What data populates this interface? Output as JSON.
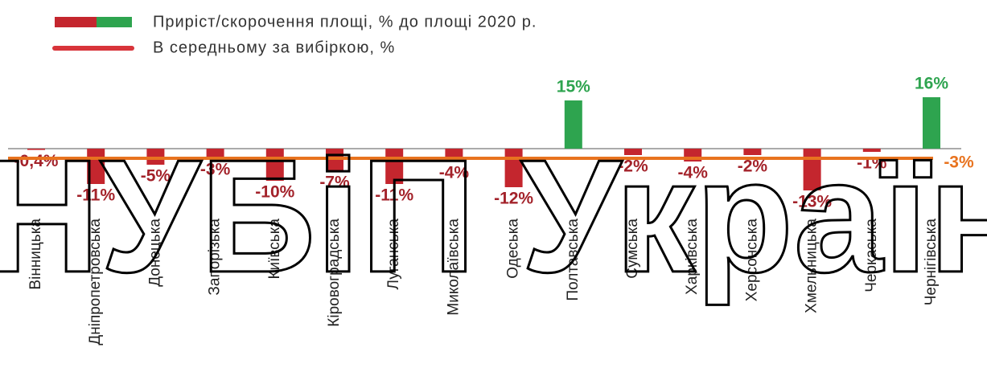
{
  "watermark": "НУБіП України",
  "chart_data": {
    "type": "bar",
    "categories": [
      "Вінницька",
      "Дніпропетровська",
      "Донецька",
      "Запорізька",
      "Київська",
      "Кіровоградська",
      "Луганська",
      "Миколаївська",
      "Одеська",
      "Полтавська",
      "Сумська",
      "Харківська",
      "Херсонська",
      "Хмельницька",
      "Черкаська",
      "Чернігівська"
    ],
    "series": [
      {
        "name": "Приріст/скорочення площі, % до площі 2020 р.",
        "values": [
          -0.4,
          -11,
          -5,
          -3,
          -10,
          -7,
          -11,
          -4,
          -12,
          15,
          -2,
          -4,
          -2,
          -13,
          -1,
          16
        ],
        "value_labels": [
          "-0,4%",
          "-11%",
          "-5%",
          "-3%",
          "-10%",
          "-7%",
          "-11%",
          "-4%",
          "-12%",
          "15%",
          "-2%",
          "-4%",
          "-2%",
          "-13%",
          "-1%",
          "16%"
        ]
      }
    ],
    "positive_color": "#2ea44f",
    "negative_color": "#c4262e",
    "average": {
      "name": "В середньому за вибіркою, %",
      "value": -3,
      "value_label": "-3%",
      "color": "#e8731f",
      "legend_color": "#d8343a"
    }
  }
}
